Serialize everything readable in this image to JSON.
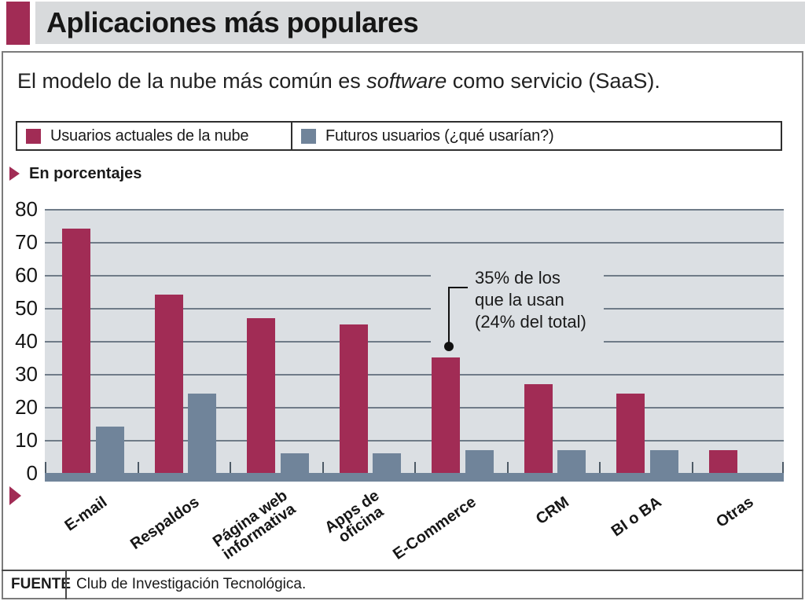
{
  "header": {
    "title": "Aplicaciones más populares"
  },
  "subtitle": {
    "prefix": "El modelo de la nube más común es ",
    "emphasis": "software",
    "suffix": " como servicio (SaaS)."
  },
  "legend": {
    "items": [
      {
        "label": "Usuarios actuales de la nube",
        "color": "#A12C55"
      },
      {
        "label": "Futuros usuarios (¿qué usarían?)",
        "color": "#70849A"
      }
    ]
  },
  "axis_note": "En porcentajes",
  "annotation": {
    "line1": "35% de los",
    "line2": "que la usan",
    "line3": "(24% del total)"
  },
  "footer": {
    "label": "FUENTE",
    "text": "Club de Investigación Tecnológica."
  },
  "colors": {
    "accent": "#A12C55",
    "future": "#70849A",
    "plot_bg": "#DBDFE3",
    "gridline": "#6F7B88",
    "header_bg": "#D8DADC"
  },
  "chart_data": {
    "type": "bar",
    "title": "Aplicaciones más populares",
    "subtitle": "El modelo de la nube más común es software como servicio (SaaS).",
    "ylabel": "En porcentajes",
    "categories": [
      "E-mail",
      "Respaldos",
      "Página web informativa",
      "Apps de oficina",
      "E-Commerce",
      "CRM",
      "BI o BA",
      "Otras"
    ],
    "category_label_lines": [
      [
        "E-mail"
      ],
      [
        "Respaldos"
      ],
      [
        "Página web",
        "informativa"
      ],
      [
        "Apps de",
        "oficina"
      ],
      [
        "E-Commerce"
      ],
      [
        "CRM"
      ],
      [
        "BI o BA"
      ],
      [
        "Otras"
      ]
    ],
    "series": [
      {
        "name": "Usuarios actuales de la nube",
        "color": "#A12C55",
        "values": [
          74,
          54,
          47,
          45,
          35,
          27,
          24,
          7
        ]
      },
      {
        "name": "Futuros usuarios (¿qué usarían?)",
        "color": "#70849A",
        "values": [
          14,
          24,
          6,
          6,
          7,
          7,
          7,
          null
        ]
      }
    ],
    "ylim": [
      0,
      80
    ],
    "yticks": [
      0,
      10,
      20,
      30,
      40,
      50,
      60,
      70,
      80
    ],
    "grid": true,
    "legend_position": "top",
    "annotation": {
      "text": "35% de los que la usan (24% del total)",
      "target_category": "E-Commerce",
      "target_series": "Usuarios actuales de la nube",
      "value": 35
    },
    "source": "Club de Investigación Tecnológica."
  }
}
